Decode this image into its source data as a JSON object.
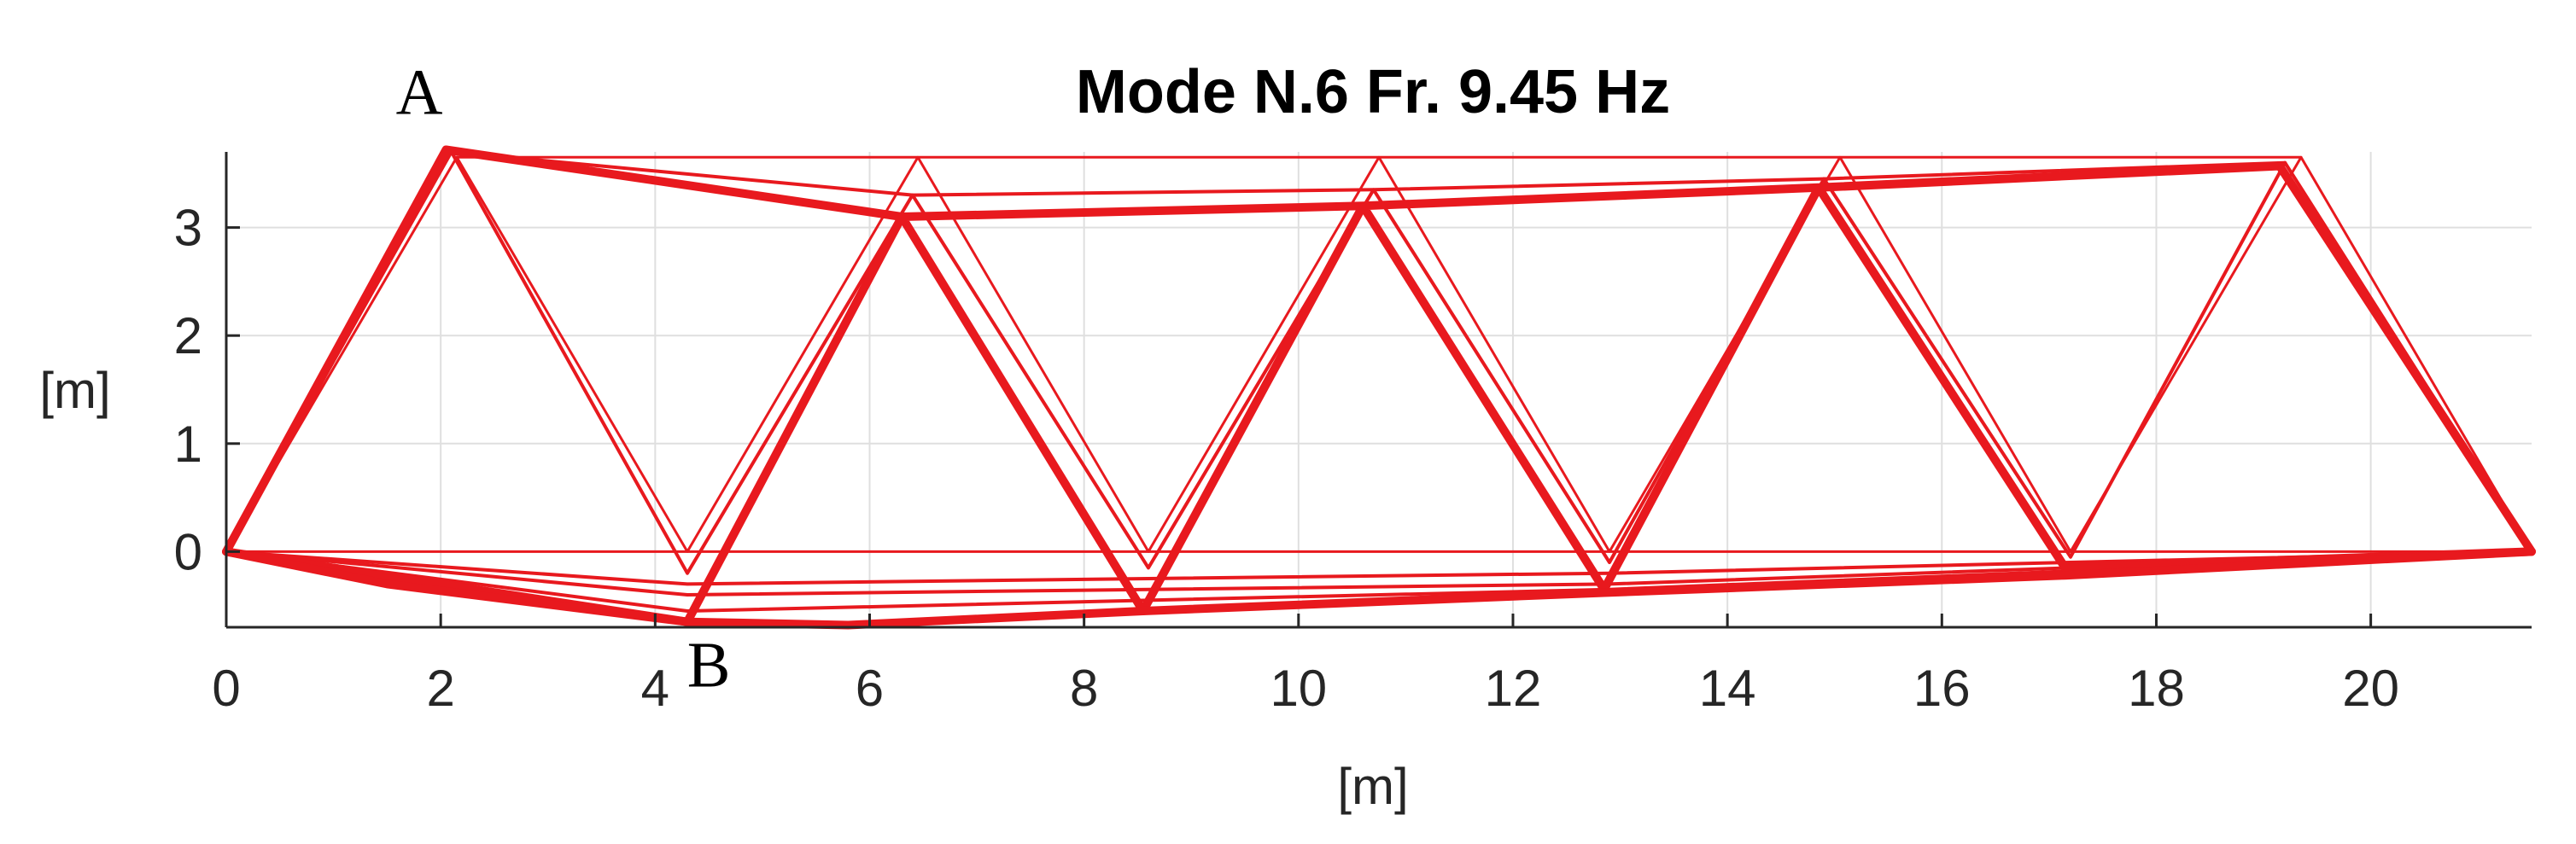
{
  "chart_data": {
    "type": "line",
    "title": "Mode N.6 Fr. 9.45 Hz",
    "xlabel": "[m]",
    "ylabel": "[m]",
    "xlim": [
      0,
      21.5
    ],
    "ylim": [
      -0.7,
      3.7
    ],
    "xticks": [
      "0",
      "2",
      "4",
      "6",
      "8",
      "10",
      "12",
      "14",
      "16",
      "18",
      "20"
    ],
    "yticks": [
      "3",
      "2",
      "1",
      "0"
    ],
    "grid": true,
    "series_color": "#e8191e",
    "annotations": [
      {
        "text": "A",
        "x": 1.8,
        "y": 4.05
      },
      {
        "text": "B",
        "x": 4.5,
        "y": -1.25
      }
    ],
    "series": [
      {
        "style": "undeformed",
        "segments": [
          [
            [
              0,
              0
            ],
            [
              2.15,
              3.65
            ],
            [
              4.3,
              0
            ],
            [
              6.45,
              3.65
            ],
            [
              8.6,
              0
            ],
            [
              10.75,
              3.65
            ],
            [
              12.9,
              0
            ],
            [
              15.05,
              3.65
            ],
            [
              17.2,
              0
            ],
            [
              19.35,
              3.65
            ],
            [
              21.5,
              0
            ],
            [
              0,
              0
            ]
          ],
          [
            [
              2.15,
              3.65
            ],
            [
              19.35,
              3.65
            ]
          ]
        ]
      },
      {
        "style": "deformed-thin",
        "segments": [
          [
            [
              0,
              0
            ],
            [
              2.1,
              3.7
            ],
            [
              4.3,
              -0.2
            ],
            [
              6.4,
              3.3
            ],
            [
              8.6,
              -0.15
            ],
            [
              10.7,
              3.35
            ],
            [
              12.9,
              -0.1
            ],
            [
              14.9,
              3.45
            ],
            [
              17.2,
              -0.05
            ],
            [
              19.2,
              3.6
            ],
            [
              21.5,
              0
            ]
          ],
          [
            [
              0,
              0
            ],
            [
              4.3,
              -0.3
            ],
            [
              8.6,
              -0.25
            ],
            [
              12.9,
              -0.2
            ],
            [
              17.2,
              -0.1
            ],
            [
              21.5,
              0
            ]
          ],
          [
            [
              0,
              0
            ],
            [
              4.3,
              -0.4
            ],
            [
              8.6,
              -0.35
            ],
            [
              12.9,
              -0.3
            ],
            [
              17.2,
              -0.15
            ],
            [
              21.5,
              0
            ]
          ],
          [
            [
              0,
              0
            ],
            [
              4.3,
              -0.55
            ],
            [
              8.6,
              -0.45
            ],
            [
              12.9,
              -0.35
            ],
            [
              17.2,
              -0.18
            ],
            [
              21.5,
              0
            ]
          ],
          [
            [
              2.1,
              3.7
            ],
            [
              6.4,
              3.3
            ],
            [
              10.7,
              3.35
            ],
            [
              14.9,
              3.45
            ],
            [
              19.2,
              3.6
            ]
          ]
        ]
      },
      {
        "style": "deformed",
        "segments": [
          [
            [
              0,
              0
            ],
            [
              2.05,
              3.72
            ],
            [
              6.3,
              3.1
            ],
            [
              10.6,
              3.2
            ],
            [
              14.85,
              3.37
            ],
            [
              19.15,
              3.57
            ],
            [
              21.5,
              0
            ],
            [
              17.15,
              -0.15
            ],
            [
              14.85,
              3.37
            ],
            [
              12.85,
              -0.35
            ],
            [
              10.6,
              3.2
            ],
            [
              8.55,
              -0.55
            ],
            [
              6.3,
              3.1
            ],
            [
              4.3,
              -0.65
            ],
            [
              0,
              0
            ]
          ],
          [
            [
              0,
              0
            ],
            [
              1.5,
              -0.3
            ],
            [
              4.3,
              -0.65
            ],
            [
              5.8,
              -0.68
            ],
            [
              8.55,
              -0.55
            ],
            [
              12.85,
              -0.38
            ],
            [
              17.15,
              -0.22
            ],
            [
              21.5,
              0
            ]
          ]
        ]
      }
    ]
  }
}
